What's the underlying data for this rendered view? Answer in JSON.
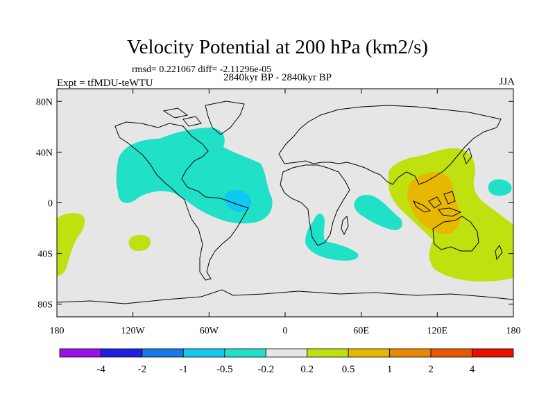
{
  "header": {
    "title": "Velocity Potential at 200 hPa (km2/s)",
    "stats": "rmsd= 0.221067  diff= -2.11296e-05",
    "experiment": "Expt = tfMDU-teWTU",
    "period": "2840kyr BP - 2840kyr BP",
    "season": "JJA"
  },
  "axes": {
    "lat_ticks": [
      {
        "value": 80,
        "label": "80N"
      },
      {
        "value": 40,
        "label": "40N"
      },
      {
        "value": 0,
        "label": "0"
      },
      {
        "value": -40,
        "label": "40S"
      },
      {
        "value": -80,
        "label": "80S"
      }
    ],
    "lon_ticks": [
      {
        "value": -180,
        "label": "180"
      },
      {
        "value": -120,
        "label": "120W"
      },
      {
        "value": -60,
        "label": "60W"
      },
      {
        "value": 0,
        "label": "0"
      },
      {
        "value": 60,
        "label": "60E"
      },
      {
        "value": 120,
        "label": "120E"
      },
      {
        "value": 180,
        "label": "180"
      }
    ]
  },
  "colorbar": {
    "colors": [
      "#9a10e8",
      "#2020e0",
      "#1878e8",
      "#10c8f0",
      "#20e0c8",
      "#e6e6e6",
      "#c0e010",
      "#e8b800",
      "#e88800",
      "#e85800",
      "#e81000"
    ],
    "labels": [
      "-4",
      "-2",
      "-1",
      "-0.5",
      "-0.2",
      "0.2",
      "0.5",
      "1",
      "2",
      "4"
    ]
  },
  "colors": {
    "background": "#e6e6e6",
    "negative_weak": "#20e0c8",
    "negative_moderate": "#10c8f0",
    "positive_weak": "#c0e010",
    "positive_moderate": "#e8b800",
    "coastline": "#000000"
  }
}
